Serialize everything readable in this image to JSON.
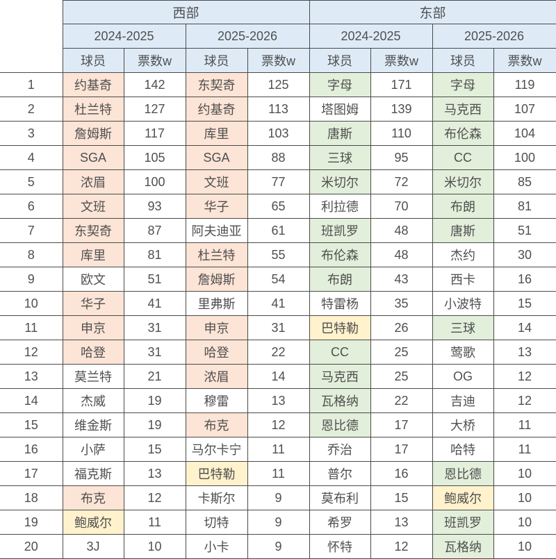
{
  "colors": {
    "header_bg": "#DEEBF7",
    "highlight_orange": "#FCE4D6",
    "highlight_green": "#E2EFDA",
    "highlight_yellow": "#FFF2CC",
    "grid_line": "#4a4a4a",
    "text": "#4f4f4f"
  },
  "chart_data": {
    "type": "table",
    "west_label": "西部",
    "east_label": "东部",
    "seasons": [
      "2024-2025",
      "2025-2026"
    ],
    "column_headers": {
      "player": "球员",
      "votes": "票数w"
    },
    "rows": [
      {
        "rank": "1",
        "cells": [
          {
            "p": "约基奇",
            "v": "142",
            "hl": "orange"
          },
          {
            "p": "东契奇",
            "v": "125",
            "hl": "orange"
          },
          {
            "p": "字母",
            "v": "171",
            "hl": "green"
          },
          {
            "p": "字母",
            "v": "119",
            "hl": "green"
          }
        ]
      },
      {
        "rank": "2",
        "cells": [
          {
            "p": "杜兰特",
            "v": "127",
            "hl": "orange"
          },
          {
            "p": "约基奇",
            "v": "113",
            "hl": "orange"
          },
          {
            "p": "塔图姆",
            "v": "139",
            "hl": "none"
          },
          {
            "p": "马克西",
            "v": "107",
            "hl": "green"
          }
        ]
      },
      {
        "rank": "3",
        "cells": [
          {
            "p": "詹姆斯",
            "v": "117",
            "hl": "orange"
          },
          {
            "p": "库里",
            "v": "103",
            "hl": "orange"
          },
          {
            "p": "唐斯",
            "v": "110",
            "hl": "green"
          },
          {
            "p": "布伦森",
            "v": "104",
            "hl": "green"
          }
        ]
      },
      {
        "rank": "4",
        "cells": [
          {
            "p": "SGA",
            "v": "105",
            "hl": "orange"
          },
          {
            "p": "SGA",
            "v": "88",
            "hl": "orange"
          },
          {
            "p": "三球",
            "v": "95",
            "hl": "green"
          },
          {
            "p": "CC",
            "v": "100",
            "hl": "green"
          }
        ]
      },
      {
        "rank": "5",
        "cells": [
          {
            "p": "浓眉",
            "v": "100",
            "hl": "orange"
          },
          {
            "p": "文班",
            "v": "77",
            "hl": "orange"
          },
          {
            "p": "米切尔",
            "v": "72",
            "hl": "green"
          },
          {
            "p": "米切尔",
            "v": "85",
            "hl": "green"
          }
        ]
      },
      {
        "rank": "6",
        "cells": [
          {
            "p": "文班",
            "v": "93",
            "hl": "orange"
          },
          {
            "p": "华子",
            "v": "65",
            "hl": "orange"
          },
          {
            "p": "利拉德",
            "v": "70",
            "hl": "none"
          },
          {
            "p": "布朗",
            "v": "81",
            "hl": "green"
          }
        ]
      },
      {
        "rank": "7",
        "cells": [
          {
            "p": "东契奇",
            "v": "87",
            "hl": "orange"
          },
          {
            "p": "阿夫迪亚",
            "v": "61",
            "hl": "none"
          },
          {
            "p": "班凯罗",
            "v": "48",
            "hl": "green"
          },
          {
            "p": "唐斯",
            "v": "51",
            "hl": "green"
          }
        ]
      },
      {
        "rank": "8",
        "cells": [
          {
            "p": "库里",
            "v": "81",
            "hl": "orange"
          },
          {
            "p": "杜兰特",
            "v": "55",
            "hl": "orange"
          },
          {
            "p": "布伦森",
            "v": "48",
            "hl": "green"
          },
          {
            "p": "杰约",
            "v": "30",
            "hl": "none"
          }
        ]
      },
      {
        "rank": "9",
        "cells": [
          {
            "p": "欧文",
            "v": "51",
            "hl": "none"
          },
          {
            "p": "詹姆斯",
            "v": "54",
            "hl": "orange"
          },
          {
            "p": "布朗",
            "v": "43",
            "hl": "green"
          },
          {
            "p": "西卡",
            "v": "16",
            "hl": "none"
          }
        ]
      },
      {
        "rank": "10",
        "cells": [
          {
            "p": "华子",
            "v": "41",
            "hl": "orange"
          },
          {
            "p": "里弗斯",
            "v": "41",
            "hl": "none"
          },
          {
            "p": "特雷杨",
            "v": "35",
            "hl": "none"
          },
          {
            "p": "小波特",
            "v": "15",
            "hl": "none"
          }
        ]
      },
      {
        "rank": "11",
        "cells": [
          {
            "p": "申京",
            "v": "31",
            "hl": "orange"
          },
          {
            "p": "申京",
            "v": "31",
            "hl": "orange"
          },
          {
            "p": "巴特勒",
            "v": "26",
            "hl": "yellow"
          },
          {
            "p": "三球",
            "v": "14",
            "hl": "green"
          }
        ]
      },
      {
        "rank": "12",
        "cells": [
          {
            "p": "哈登",
            "v": "31",
            "hl": "orange"
          },
          {
            "p": "哈登",
            "v": "22",
            "hl": "orange"
          },
          {
            "p": "CC",
            "v": "25",
            "hl": "green"
          },
          {
            "p": "莺歌",
            "v": "13",
            "hl": "none"
          }
        ]
      },
      {
        "rank": "13",
        "cells": [
          {
            "p": "莫兰特",
            "v": "21",
            "hl": "none"
          },
          {
            "p": "浓眉",
            "v": "14",
            "hl": "orange"
          },
          {
            "p": "马克西",
            "v": "25",
            "hl": "green"
          },
          {
            "p": "OG",
            "v": "12",
            "hl": "none"
          }
        ]
      },
      {
        "rank": "14",
        "cells": [
          {
            "p": "杰威",
            "v": "19",
            "hl": "none"
          },
          {
            "p": "穆雷",
            "v": "13",
            "hl": "none"
          },
          {
            "p": "瓦格纳",
            "v": "22",
            "hl": "green"
          },
          {
            "p": "吉迪",
            "v": "12",
            "hl": "none"
          }
        ]
      },
      {
        "rank": "15",
        "cells": [
          {
            "p": "维金斯",
            "v": "19",
            "hl": "none"
          },
          {
            "p": "布克",
            "v": "12",
            "hl": "orange"
          },
          {
            "p": "恩比德",
            "v": "17",
            "hl": "green"
          },
          {
            "p": "大桥",
            "v": "11",
            "hl": "none"
          }
        ]
      },
      {
        "rank": "16",
        "cells": [
          {
            "p": "小萨",
            "v": "15",
            "hl": "none"
          },
          {
            "p": "马尔卡宁",
            "v": "11",
            "hl": "none"
          },
          {
            "p": "乔治",
            "v": "17",
            "hl": "none"
          },
          {
            "p": "哈特",
            "v": "11",
            "hl": "none"
          }
        ]
      },
      {
        "rank": "17",
        "cells": [
          {
            "p": "福克斯",
            "v": "13",
            "hl": "none"
          },
          {
            "p": "巴特勒",
            "v": "11",
            "hl": "yellow"
          },
          {
            "p": "普尔",
            "v": "16",
            "hl": "none"
          },
          {
            "p": "恩比德",
            "v": "10",
            "hl": "green"
          }
        ]
      },
      {
        "rank": "18",
        "cells": [
          {
            "p": "布克",
            "v": "12",
            "hl": "orange"
          },
          {
            "p": "卡斯尔",
            "v": "9",
            "hl": "none"
          },
          {
            "p": "莫布利",
            "v": "15",
            "hl": "none"
          },
          {
            "p": "鲍威尔",
            "v": "10",
            "hl": "yellow"
          }
        ]
      },
      {
        "rank": "19",
        "cells": [
          {
            "p": "鲍威尔",
            "v": "11",
            "hl": "yellow"
          },
          {
            "p": "切特",
            "v": "9",
            "hl": "none"
          },
          {
            "p": "希罗",
            "v": "13",
            "hl": "none"
          },
          {
            "p": "班凯罗",
            "v": "10",
            "hl": "green"
          }
        ]
      },
      {
        "rank": "20",
        "cells": [
          {
            "p": "3J",
            "v": "10",
            "hl": "none"
          },
          {
            "p": "小卡",
            "v": "9",
            "hl": "none"
          },
          {
            "p": "怀特",
            "v": "12",
            "hl": "none"
          },
          {
            "p": "瓦格纳",
            "v": "10",
            "hl": "green"
          }
        ]
      }
    ]
  }
}
